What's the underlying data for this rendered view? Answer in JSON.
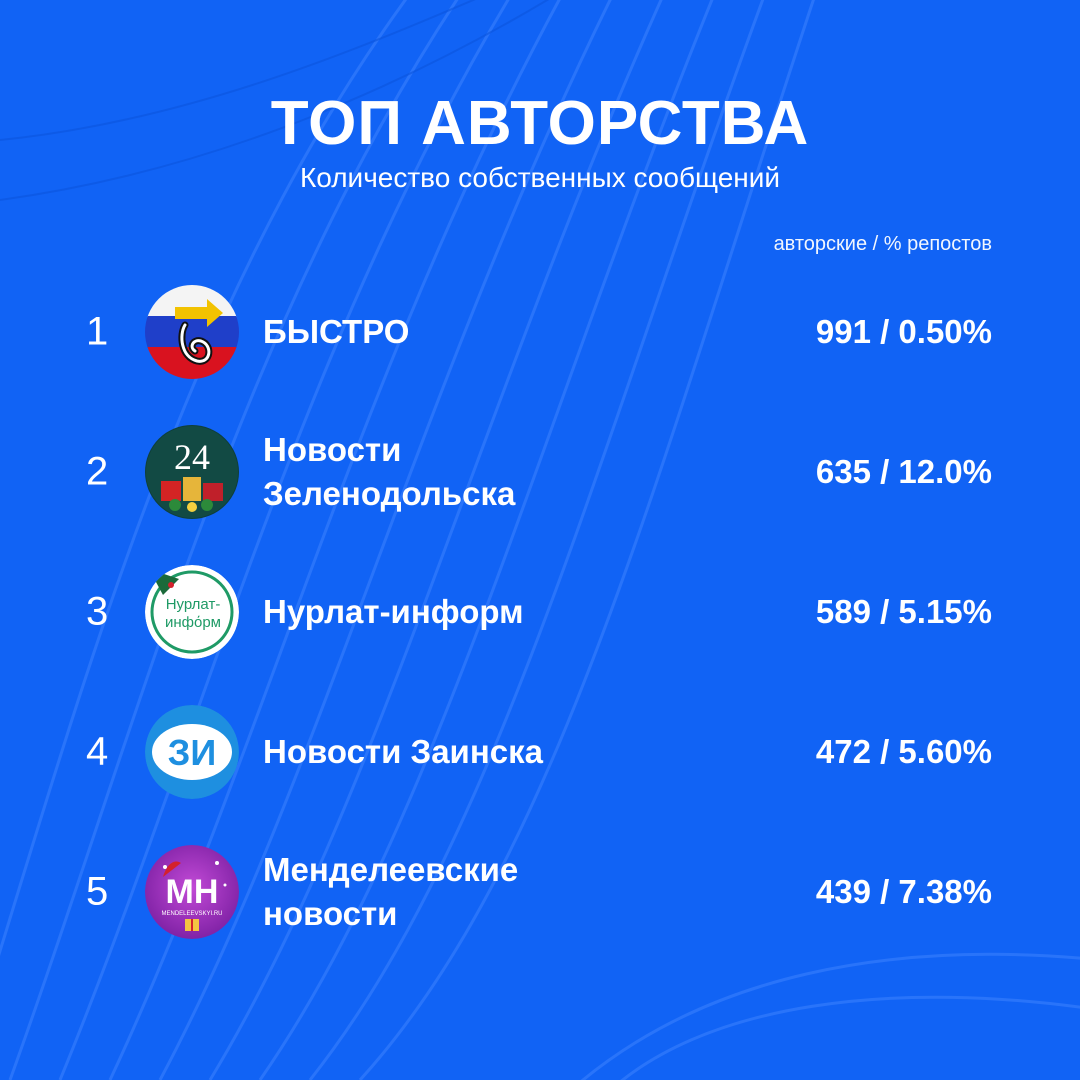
{
  "header": {
    "title": "ТОП АВТОРСТВА",
    "subtitle": "Количество собственных сообщений",
    "column_label": "авторские / % репостов"
  },
  "colors": {
    "background": "#1163f5",
    "text": "#ffffff"
  },
  "ranking": [
    {
      "rank": "1",
      "name": "БЫСТРО",
      "value": "991 / 0.50%",
      "icon": "bystro-logo-icon"
    },
    {
      "rank": "2",
      "name": "Новости Зеленодольска",
      "value": "635 / 12.0%",
      "icon": "zelenodolsk-24-logo-icon",
      "logo_text": "24"
    },
    {
      "rank": "3",
      "name": "Нурлат-информ",
      "value": "589 / 5.15%",
      "icon": "nurlat-inform-logo-icon",
      "logo_text": "Нурлат-инфόрм"
    },
    {
      "rank": "4",
      "name": "Новости Заинска",
      "value": "472 / 5.60%",
      "icon": "zainsk-logo-icon",
      "logo_text": "ЗИ"
    },
    {
      "rank": "5",
      "name": "Менделеевские новости",
      "value": "439 / 7.38%",
      "icon": "mendeleevsk-logo-icon",
      "logo_text": "МН",
      "logo_subtext": "MENDELEEVSKYI.RU"
    }
  ]
}
